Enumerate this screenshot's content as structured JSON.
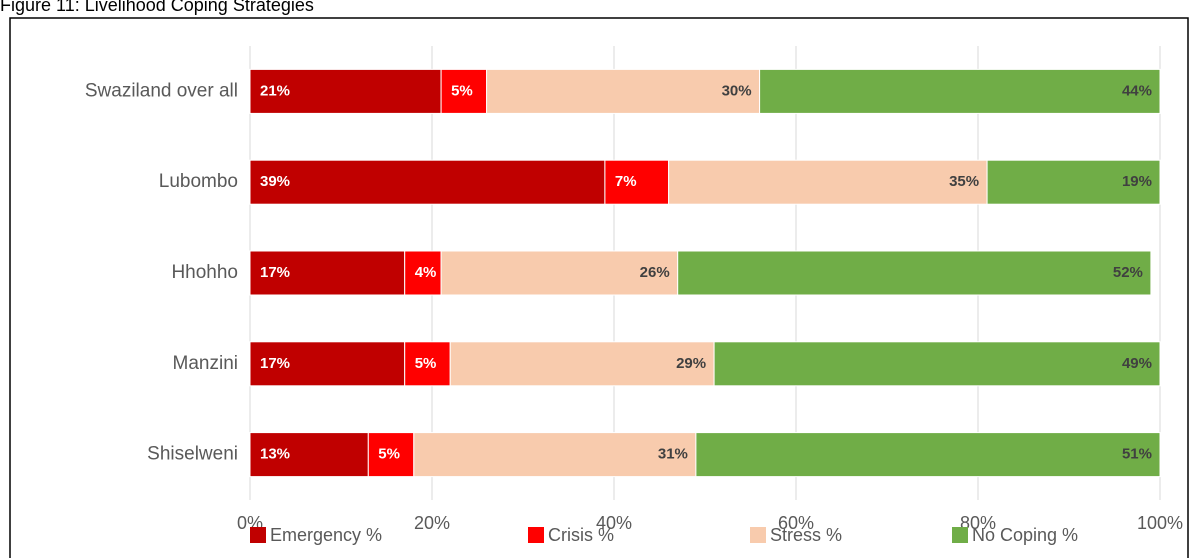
{
  "chart_data": {
    "type": "stacked_barh",
    "title": "Figure 11: Livelihood Coping Strategies",
    "categories": [
      "Swaziland over all",
      "Lubombo",
      "Hhohho",
      "Manzini",
      "Shiselweni"
    ],
    "series": [
      {
        "name": "Emergency %",
        "color": "#c00000",
        "values": [
          21,
          39,
          17,
          17,
          13
        ],
        "value_labels": [
          "21%",
          "39%",
          "17%",
          "17%",
          "13%"
        ]
      },
      {
        "name": "Crisis %",
        "color": "#ff0000",
        "values": [
          5,
          7,
          4,
          5,
          5
        ],
        "value_labels": [
          "5%",
          "7%",
          "4%",
          "5%",
          "5%"
        ]
      },
      {
        "name": "Stress %",
        "color": "#f8cbad",
        "values": [
          30,
          35,
          26,
          29,
          31
        ],
        "value_labels": [
          "30%",
          "35%",
          "26%",
          "29%",
          "31%"
        ]
      },
      {
        "name": "No Coping %",
        "color": "#70ad47",
        "values": [
          44,
          19,
          52,
          49,
          51
        ],
        "value_labels": [
          "44%",
          "19%",
          "52%",
          "49%",
          "51%"
        ]
      }
    ],
    "xlim": [
      0,
      100
    ],
    "xticks": [
      {
        "value": 0,
        "label": "0%"
      },
      {
        "value": 20,
        "label": "20%"
      },
      {
        "value": 40,
        "label": "40%"
      },
      {
        "value": 60,
        "label": "60%"
      },
      {
        "value": 80,
        "label": "80%"
      },
      {
        "value": 100,
        "label": "100%"
      }
    ],
    "grid": true,
    "legend": "bottom"
  }
}
